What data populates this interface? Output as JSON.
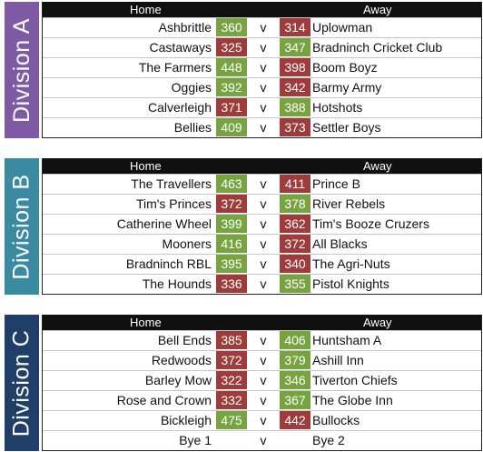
{
  "colors": {
    "win": "#77a341",
    "lose": "#9e3b3b",
    "header": "#101010",
    "divA": "#7d5aa3",
    "divB": "#3a8aa1",
    "divC": "#1f3f68"
  },
  "headers": {
    "home": "Home",
    "away": "Away",
    "vs": "v"
  },
  "divisions": [
    {
      "name": "Division A",
      "matches": [
        {
          "home": "Ashbrittle",
          "home_score": "360",
          "away_score": "314",
          "away": "Uplowman"
        },
        {
          "home": "Castaways",
          "home_score": "325",
          "away_score": "347",
          "away": "Bradninch Cricket Club"
        },
        {
          "home": "The Farmers",
          "home_score": "448",
          "away_score": "398",
          "away": "Boom Boyz"
        },
        {
          "home": "Oggies",
          "home_score": "392",
          "away_score": "342",
          "away": "Barmy Army"
        },
        {
          "home": "Calverleigh",
          "home_score": "371",
          "away_score": "388",
          "away": "Hotshots"
        },
        {
          "home": "Bellies",
          "home_score": "409",
          "away_score": "373",
          "away": "Settler Boys"
        }
      ]
    },
    {
      "name": "Division B",
      "matches": [
        {
          "home": "The Travellers",
          "home_score": "463",
          "away_score": "411",
          "away": "Prince B"
        },
        {
          "home": "Tim's Princes",
          "home_score": "372",
          "away_score": "378",
          "away": "River Rebels"
        },
        {
          "home": "Catherine Wheel",
          "home_score": "399",
          "away_score": "362",
          "away": "Tim's Booze Cruzers"
        },
        {
          "home": "Mooners",
          "home_score": "416",
          "away_score": "372",
          "away": "All Blacks"
        },
        {
          "home": "Bradninch RBL",
          "home_score": "395",
          "away_score": "340",
          "away": "The Agri-Nuts"
        },
        {
          "home": "The Hounds",
          "home_score": "336",
          "away_score": "355",
          "away": "Pistol Knights"
        }
      ]
    },
    {
      "name": "Division C",
      "matches": [
        {
          "home": "Bell Ends",
          "home_score": "385",
          "away_score": "406",
          "away": "Huntsham A"
        },
        {
          "home": "Redwoods",
          "home_score": "372",
          "away_score": "379",
          "away": "Ashill Inn"
        },
        {
          "home": "Barley Mow",
          "home_score": "322",
          "away_score": "346",
          "away": "Tiverton Chiefs"
        },
        {
          "home": "Rose and Crown",
          "home_score": "332",
          "away_score": "367",
          "away": "The Globe Inn"
        },
        {
          "home": "Bickleigh",
          "home_score": "475",
          "away_score": "442",
          "away": "Bullocks"
        },
        {
          "home": "Bye 1",
          "home_score": "",
          "away_score": "",
          "away": "Bye 2"
        }
      ]
    }
  ]
}
